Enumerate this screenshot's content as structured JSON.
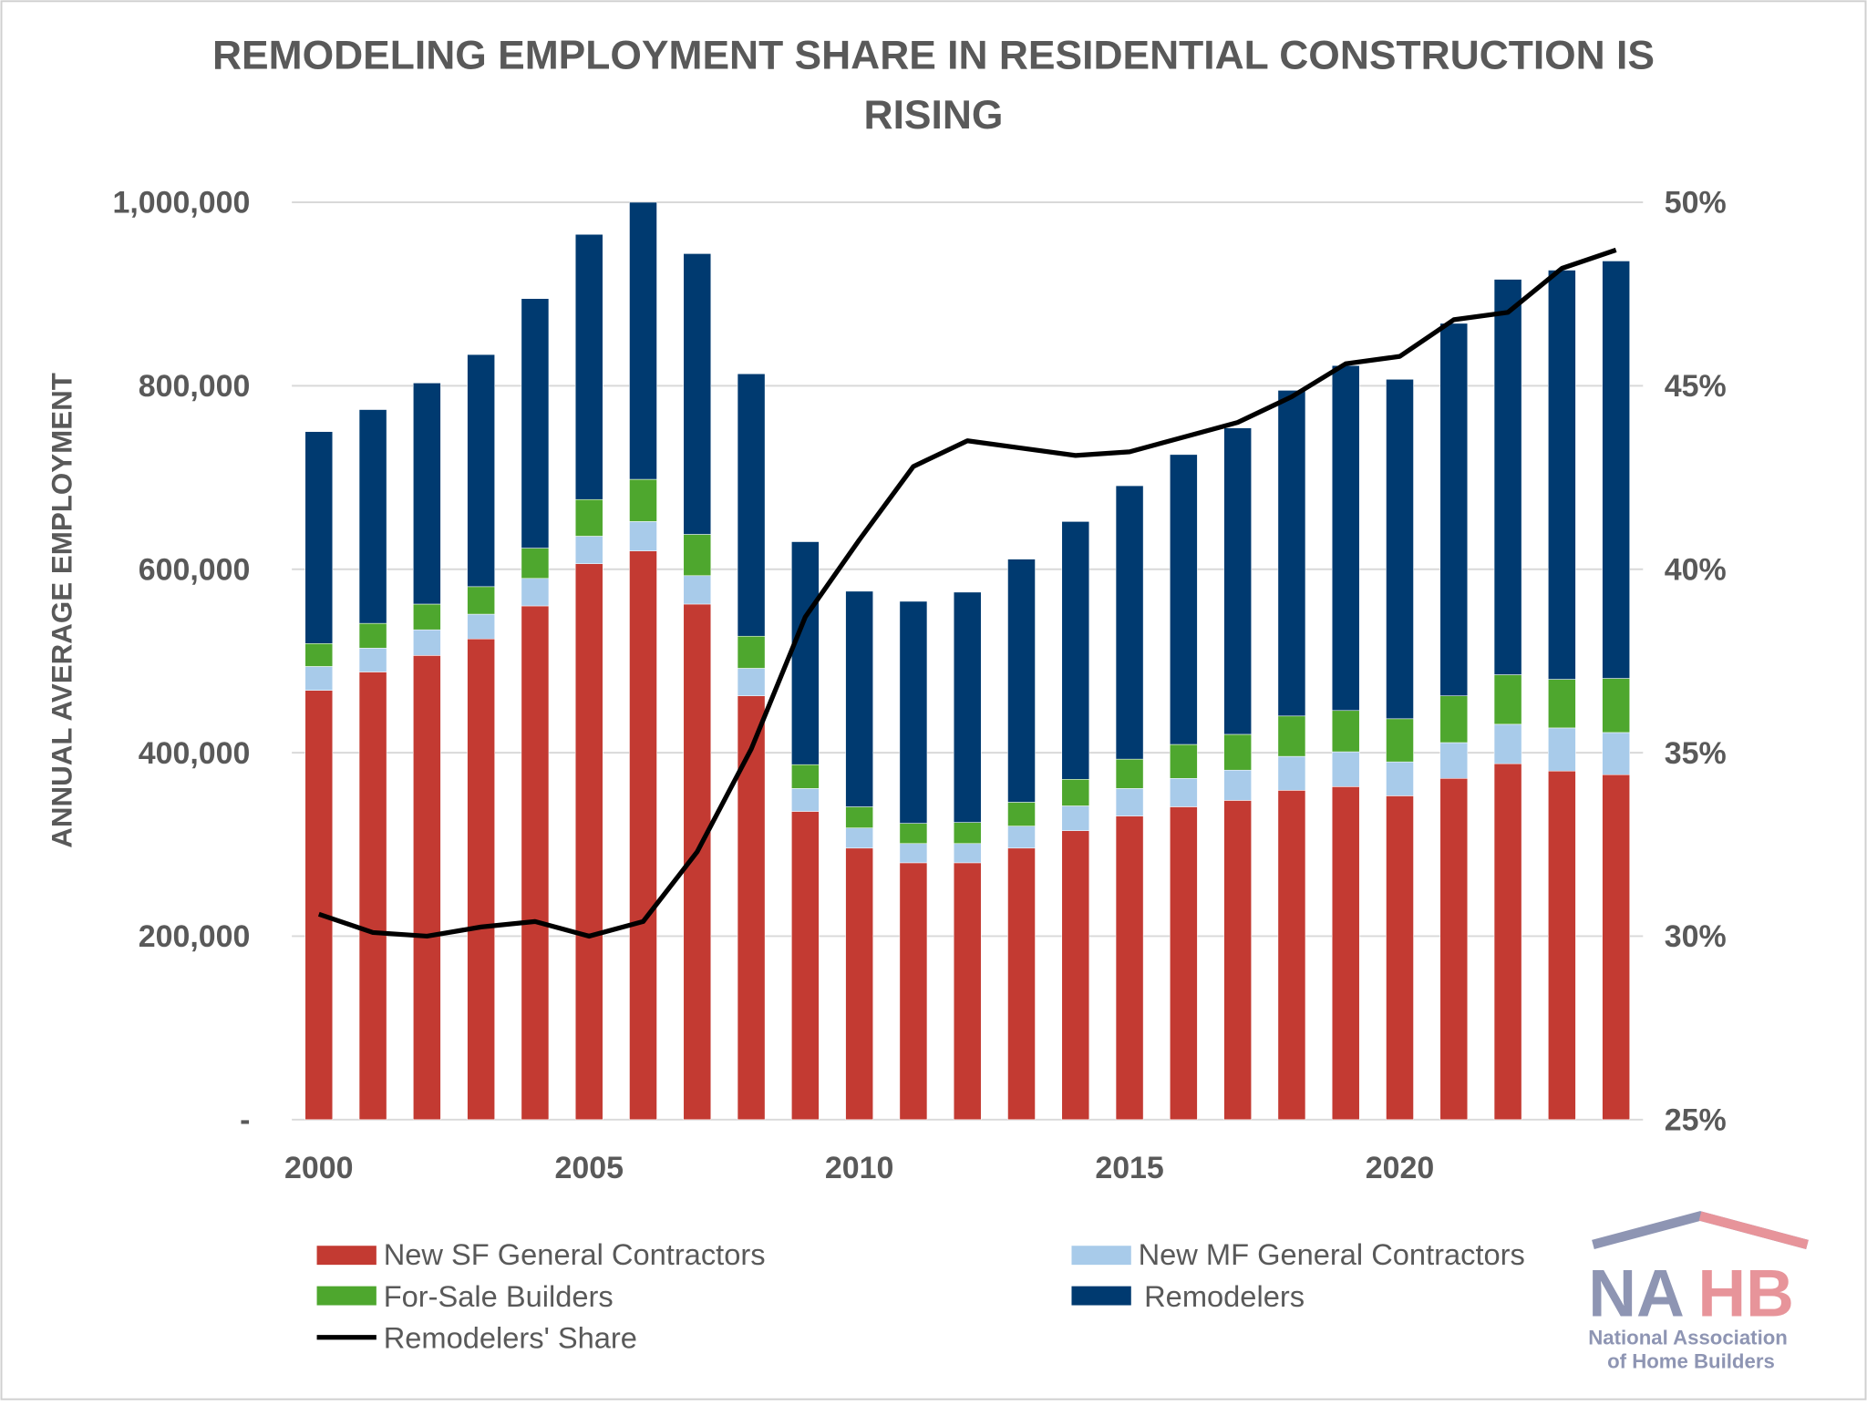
{
  "chart_data": {
    "type": "bar",
    "stacked": true,
    "title": "REMODELING EMPLOYMENT SHARE IN RESIDENTIAL CONSTRUCTION IS RISING",
    "title_lines": [
      "REMODELING EMPLOYMENT SHARE IN RESIDENTIAL CONSTRUCTION IS",
      "RISING"
    ],
    "ylabel": "ANNUAL AVERAGE EMPLOYMENT",
    "xlabel": "",
    "ylim": [
      0,
      1000000
    ],
    "y2lim": [
      25,
      50
    ],
    "y_ticks": [
      "-",
      "200,000",
      "400,000",
      "600,000",
      "800,000",
      "1,000,000"
    ],
    "y2_ticks": [
      "25%",
      "30%",
      "35%",
      "40%",
      "45%",
      "50%"
    ],
    "x_tick_labels": [
      "2000",
      "2005",
      "2010",
      "2015",
      "2020"
    ],
    "grid": true,
    "legend": "bottom",
    "categories": [
      2000,
      2001,
      2002,
      2003,
      2004,
      2005,
      2006,
      2007,
      2008,
      2009,
      2010,
      2011,
      2012,
      2013,
      2014,
      2015,
      2016,
      2017,
      2018,
      2019,
      2020,
      2021,
      2022,
      2023,
      2024
    ],
    "series": [
      {
        "name": "New SF General Contractors",
        "color": "#C33A32",
        "values": [
          468000,
          488000,
          506000,
          524000,
          560000,
          606000,
          620000,
          562000,
          462000,
          336000,
          296000,
          280000,
          280000,
          296000,
          315000,
          331000,
          341000,
          348000,
          359000,
          363000,
          353000,
          372000,
          388000,
          380000,
          376000
        ]
      },
      {
        "name": "New MF General Contractors",
        "color": "#A8CBEA",
        "values": [
          26000,
          26000,
          28000,
          27000,
          30000,
          30000,
          32000,
          31000,
          30000,
          25000,
          22000,
          21000,
          21000,
          24000,
          27000,
          30000,
          31000,
          33000,
          37000,
          38000,
          37000,
          39000,
          43000,
          47000,
          46000
        ]
      },
      {
        "name": "For-Sale Builders",
        "color": "#4EA72E",
        "values": [
          25000,
          27000,
          28000,
          30000,
          33000,
          40000,
          46000,
          45000,
          35000,
          26000,
          23000,
          22000,
          23000,
          26000,
          29000,
          32000,
          37000,
          39000,
          44000,
          45000,
          47000,
          51000,
          54000,
          53000,
          59000
        ]
      },
      {
        "name": "Remodelers",
        "color": "#003A70",
        "values": [
          231000,
          233000,
          241000,
          253000,
          272000,
          289000,
          302000,
          306000,
          286000,
          243000,
          235000,
          242000,
          251000,
          265000,
          281000,
          298000,
          316000,
          334000,
          355000,
          376000,
          370000,
          406000,
          431000,
          446000,
          455000
        ]
      }
    ],
    "line_series": {
      "name": "Remodelers' Share",
      "color": "#000000",
      "axis": "right",
      "values": [
        30.6,
        30.1,
        30.0,
        30.25,
        30.4,
        30.0,
        30.4,
        32.3,
        35.1,
        38.7,
        40.8,
        42.8,
        43.5,
        43.3,
        43.1,
        43.2,
        43.6,
        44.0,
        44.7,
        45.6,
        45.8,
        46.8,
        47.0,
        48.2,
        48.7
      ]
    }
  },
  "logo": {
    "text": "NAHB",
    "line1": "National Association",
    "line2": "of Home Builders"
  }
}
